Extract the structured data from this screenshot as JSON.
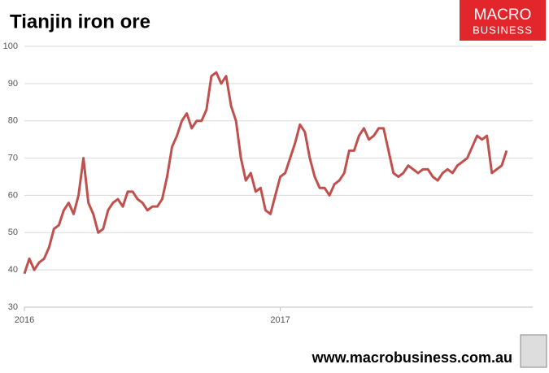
{
  "chart_data": {
    "type": "line",
    "title": "Tianjin iron ore",
    "logo": [
      "MACRO",
      "BUSINESS"
    ],
    "source": "www.macrobusiness.com.au",
    "categories": [
      "2016",
      null,
      null,
      null,
      null,
      null,
      null,
      null,
      null,
      null,
      null,
      null,
      null,
      null,
      null,
      null,
      null,
      null,
      null,
      null,
      null,
      null,
      null,
      null,
      null,
      null,
      null,
      null,
      null,
      null,
      null,
      null,
      null,
      null,
      null,
      null,
      null,
      null,
      null,
      null,
      null,
      null,
      null,
      null,
      null,
      null,
      null,
      null,
      null,
      null,
      null,
      null,
      "2017",
      null,
      null,
      null,
      null,
      null,
      null,
      null,
      null,
      null,
      null,
      null,
      null,
      null,
      null,
      null,
      null,
      null,
      null,
      null,
      null,
      null,
      null,
      null,
      null,
      null,
      null,
      null,
      null,
      null,
      null,
      null,
      null,
      null,
      null,
      null,
      null,
      null,
      null,
      null,
      null,
      null,
      null,
      null,
      null,
      null,
      null
    ],
    "values": [
      39,
      43,
      40,
      42,
      43,
      46,
      51,
      52,
      56,
      58,
      55,
      60,
      70,
      58,
      55,
      50,
      51,
      56,
      58,
      59,
      57,
      61,
      61,
      59,
      58,
      56,
      57,
      57,
      59,
      65,
      73,
      76,
      80,
      82,
      78,
      80,
      80,
      83,
      92,
      93,
      90,
      92,
      84,
      80,
      70,
      64,
      66,
      61,
      62,
      56,
      55,
      60,
      65,
      66,
      70,
      74,
      79,
      77,
      70,
      65,
      62,
      62,
      60,
      63,
      64,
      66,
      72,
      72,
      76,
      78,
      75,
      76,
      78,
      78,
      72,
      66,
      65,
      66,
      68,
      67,
      66,
      67,
      67,
      65,
      64,
      66,
      67,
      66,
      68,
      69,
      70,
      73,
      76,
      75,
      76,
      66,
      67,
      68,
      72
    ],
    "color": "#c0504d",
    "ylim": [
      30,
      100
    ],
    "yticks": [
      30,
      40,
      50,
      60,
      70,
      80,
      90,
      100
    ],
    "grid": true
  }
}
